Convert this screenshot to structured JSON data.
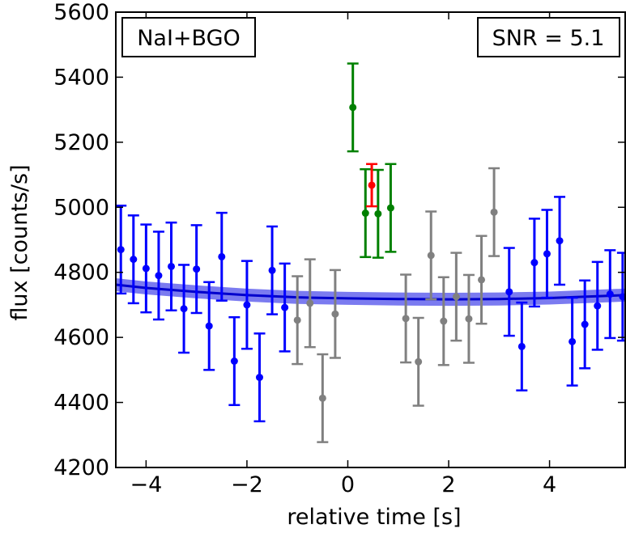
{
  "chart_data": {
    "type": "scatter",
    "xlabel": "relative time [s]",
    "ylabel": "flux [counts/s]",
    "xlim": [
      -4.6,
      5.5
    ],
    "ylim": [
      4200,
      5600
    ],
    "xticks": [
      -4,
      -2,
      0,
      2,
      4
    ],
    "xtick_labels": [
      "−4",
      "−2",
      "0",
      "2",
      "4"
    ],
    "yticks": [
      4200,
      4400,
      4600,
      4800,
      5000,
      5200,
      5400,
      5600
    ],
    "ytick_labels": [
      "4200",
      "4400",
      "4600",
      "4800",
      "5000",
      "5200",
      "5400",
      "5600"
    ],
    "grid": false,
    "annotations": {
      "detector": "NaI+BGO",
      "snr": "SNR = 5.1"
    },
    "colors": {
      "background": "#0000ff",
      "excluded": "#808080",
      "signal": "#008000",
      "peak": "#ff0000",
      "model_line": "#0000cc",
      "model_band": "#7b7bf0"
    },
    "series": [
      {
        "color": "#0000ff",
        "points": [
          {
            "x": -4.5,
            "y": 4870,
            "err": 135
          },
          {
            "x": -4.25,
            "y": 4840,
            "err": 135
          },
          {
            "x": -4.0,
            "y": 4812,
            "err": 135
          },
          {
            "x": -3.75,
            "y": 4790,
            "err": 135
          },
          {
            "x": -3.5,
            "y": 4818,
            "err": 135
          },
          {
            "x": -3.25,
            "y": 4688,
            "err": 135
          },
          {
            "x": -3.0,
            "y": 4810,
            "err": 135
          },
          {
            "x": -2.75,
            "y": 4635,
            "err": 135
          },
          {
            "x": -2.5,
            "y": 4848,
            "err": 135
          },
          {
            "x": -2.25,
            "y": 4527,
            "err": 135
          },
          {
            "x": -2.0,
            "y": 4700,
            "err": 135
          },
          {
            "x": -1.75,
            "y": 4477,
            "err": 135
          },
          {
            "x": -1.5,
            "y": 4806,
            "err": 135
          },
          {
            "x": -1.25,
            "y": 4692,
            "err": 135
          },
          {
            "x": 3.2,
            "y": 4740,
            "err": 135
          },
          {
            "x": 3.45,
            "y": 4572,
            "err": 135
          },
          {
            "x": 3.7,
            "y": 4830,
            "err": 135
          },
          {
            "x": 3.95,
            "y": 4857,
            "err": 135
          },
          {
            "x": 4.2,
            "y": 4897,
            "err": 135
          },
          {
            "x": 4.45,
            "y": 4587,
            "err": 135
          },
          {
            "x": 4.7,
            "y": 4640,
            "err": 135
          },
          {
            "x": 4.95,
            "y": 4697,
            "err": 135
          },
          {
            "x": 5.2,
            "y": 4733,
            "err": 135
          },
          {
            "x": 5.45,
            "y": 4725,
            "err": 135
          }
        ]
      },
      {
        "color": "#808080",
        "points": [
          {
            "x": -1.0,
            "y": 4653,
            "err": 135
          },
          {
            "x": -0.75,
            "y": 4705,
            "err": 135
          },
          {
            "x": -0.5,
            "y": 4413,
            "err": 135
          },
          {
            "x": -0.25,
            "y": 4672,
            "err": 135
          },
          {
            "x": 1.15,
            "y": 4658,
            "err": 135
          },
          {
            "x": 1.4,
            "y": 4525,
            "err": 135
          },
          {
            "x": 1.65,
            "y": 4852,
            "err": 135
          },
          {
            "x": 1.9,
            "y": 4650,
            "err": 135
          },
          {
            "x": 2.15,
            "y": 4725,
            "err": 135
          },
          {
            "x": 2.4,
            "y": 4657,
            "err": 135
          },
          {
            "x": 2.65,
            "y": 4777,
            "err": 135
          },
          {
            "x": 2.9,
            "y": 4985,
            "err": 135
          }
        ]
      },
      {
        "color": "#008000",
        "points": [
          {
            "x": 0.1,
            "y": 5307,
            "err": 135
          },
          {
            "x": 0.35,
            "y": 4982,
            "err": 135
          },
          {
            "x": 0.6,
            "y": 4980,
            "err": 135
          },
          {
            "x": 0.85,
            "y": 4998,
            "err": 135
          }
        ]
      },
      {
        "color": "#ff0000",
        "points": [
          {
            "x": 0.475,
            "y": 5068,
            "err": 65
          }
        ]
      }
    ],
    "model": {
      "band_halfwidth": 20,
      "points": [
        {
          "x": -4.6,
          "y": 4762
        },
        {
          "x": -4.0,
          "y": 4752
        },
        {
          "x": -3.0,
          "y": 4740
        },
        {
          "x": -2.0,
          "y": 4730
        },
        {
          "x": -1.0,
          "y": 4723
        },
        {
          "x": 0.0,
          "y": 4720
        },
        {
          "x": 1.0,
          "y": 4718
        },
        {
          "x": 2.0,
          "y": 4717
        },
        {
          "x": 3.0,
          "y": 4718
        },
        {
          "x": 4.0,
          "y": 4721
        },
        {
          "x": 5.0,
          "y": 4727
        },
        {
          "x": 5.5,
          "y": 4730
        }
      ]
    }
  }
}
